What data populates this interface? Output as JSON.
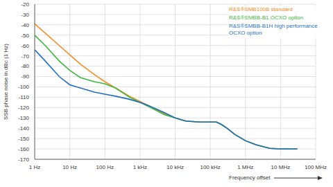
{
  "chart_data": {
    "type": "line",
    "x_label": "Frequency offset",
    "y_label": "SSB phase noise in dBc (1 Hz)",
    "log": "x",
    "grid": true,
    "legend": "upper right",
    "xlim": [
      1,
      100000000
    ],
    "ylim": [
      -170,
      -20
    ],
    "xticks": [
      {
        "value": 1,
        "label": "1 Hz"
      },
      {
        "value": 10,
        "label": "10 Hz"
      },
      {
        "value": 100,
        "label": "100 Hz"
      },
      {
        "value": 1000,
        "label": "1 kHz"
      },
      {
        "value": 10000,
        "label": "10 kHz"
      },
      {
        "value": 100000,
        "label": "100 kHz"
      },
      {
        "value": 1000000,
        "label": "1 MHz"
      },
      {
        "value": 10000000,
        "label": "10 MHz"
      },
      {
        "value": 100000000,
        "label": "100 MHz"
      }
    ],
    "yticks": [
      -170,
      -160,
      -150,
      -140,
      -130,
      -120,
      -110,
      -100,
      -90,
      -80,
      -70,
      -60,
      -50,
      -40,
      -30,
      -20
    ],
    "x": [
      1,
      2,
      5,
      10,
      20,
      50,
      100,
      200,
      500,
      1000,
      2000,
      5000,
      10000,
      20000,
      50000,
      100000,
      150000,
      200000,
      300000,
      500000,
      1000000,
      2000000,
      5000000,
      10000000,
      30000000
    ],
    "series": [
      {
        "name": "R&S®SMB100B standard",
        "color": "#f28c28",
        "values": [
          -39,
          -48,
          -60,
          -69,
          -78,
          -88,
          -95,
          -101,
          -109,
          -114,
          -119,
          -126,
          -130,
          -133,
          -134,
          -134,
          -134,
          -136,
          -140,
          -146,
          -152,
          -156,
          -159.5,
          -160,
          -160
        ]
      },
      {
        "name": "R&S®SMBB-B1 OCXO option",
        "color": "#3cb83c",
        "values": [
          -50,
          -60,
          -75,
          -84,
          -91,
          -95,
          -97,
          -101,
          -110,
          -115,
          -120,
          -127,
          -130,
          -133,
          -134,
          -134,
          -134,
          -136,
          -140,
          -146,
          -152,
          -156,
          -159.5,
          -160,
          -160
        ]
      },
      {
        "name": "R&S®SMBB-B1H high performance OCXO option",
        "color": "#1f6fc1",
        "values": [
          -64,
          -75,
          -90,
          -98,
          -101,
          -105,
          -107,
          -109,
          -112,
          -115,
          -119,
          -125,
          -130,
          -133,
          -134,
          -134,
          -134,
          -136,
          -140,
          -146,
          -152,
          -156,
          -159.5,
          -160,
          -160
        ]
      }
    ]
  }
}
